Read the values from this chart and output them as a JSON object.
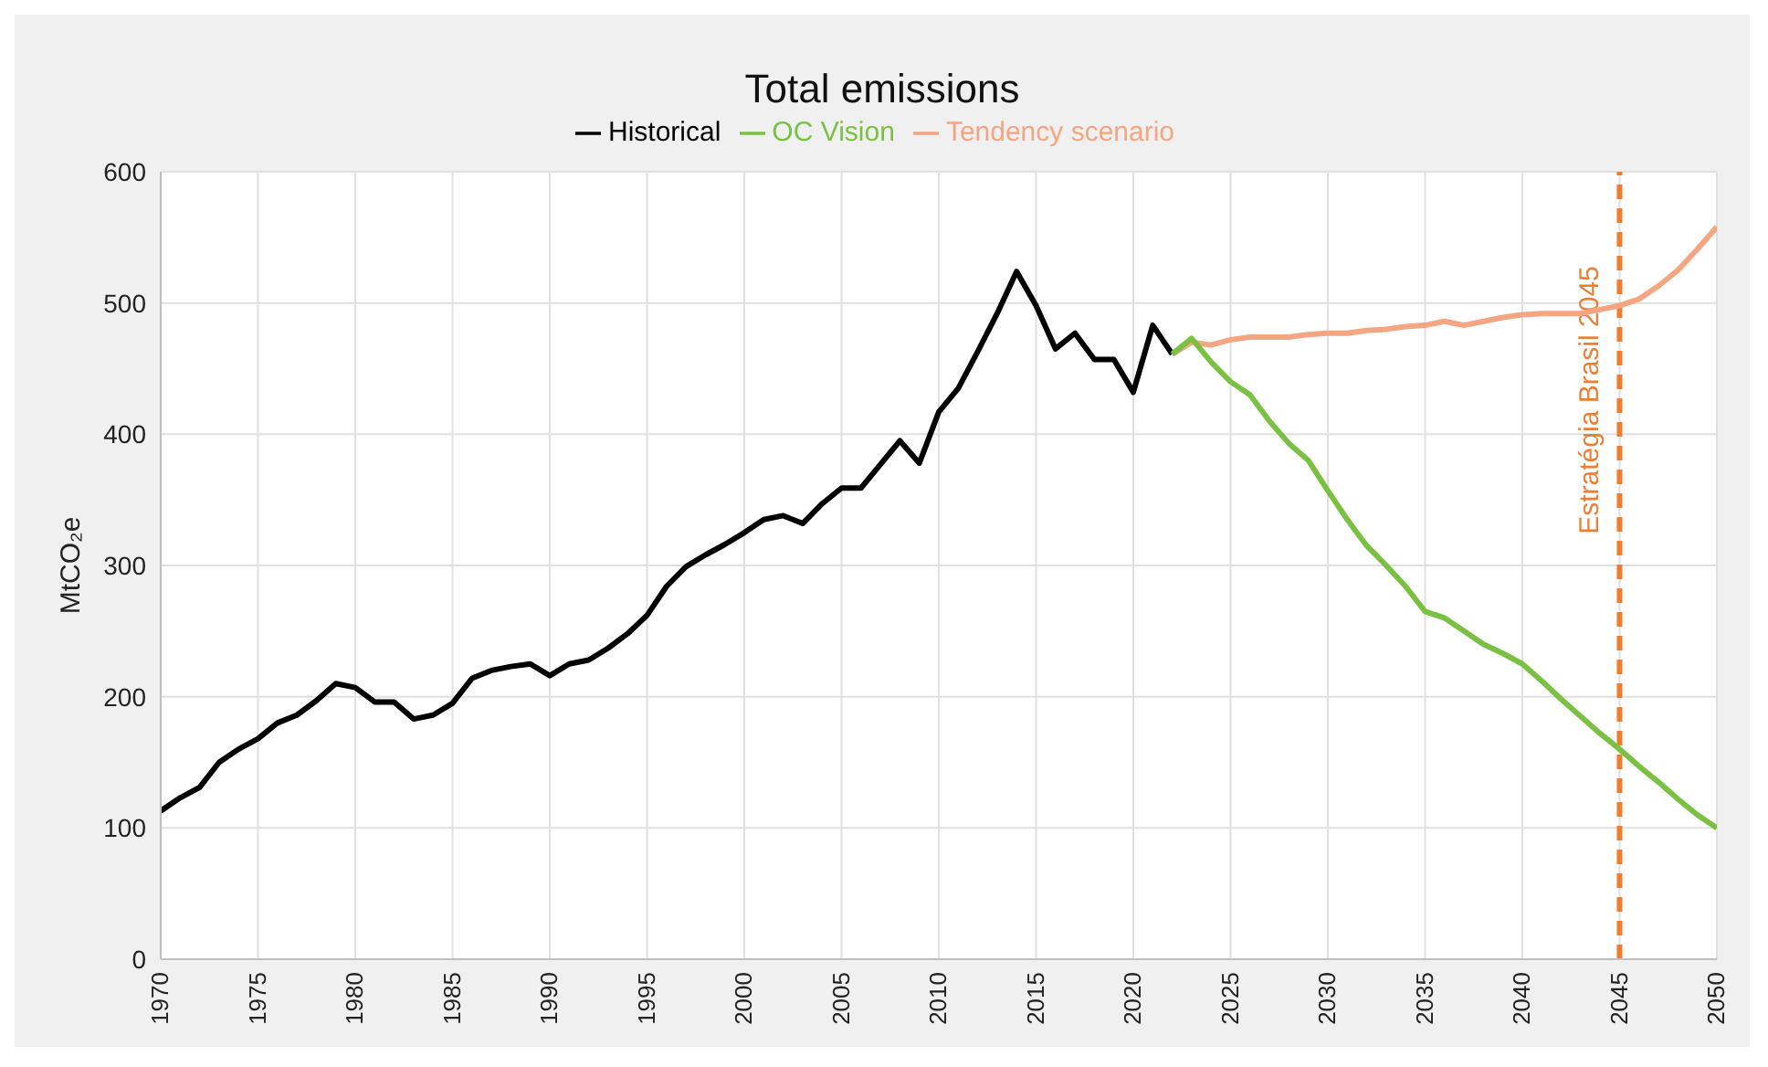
{
  "chart_data": {
    "type": "line",
    "title": "Total emissions",
    "ylabel": "MtCO₂e",
    "x": [
      1970,
      1971,
      1972,
      1973,
      1974,
      1975,
      1976,
      1977,
      1978,
      1979,
      1980,
      1981,
      1982,
      1983,
      1984,
      1985,
      1986,
      1987,
      1988,
      1989,
      1990,
      1991,
      1992,
      1993,
      1994,
      1995,
      1996,
      1997,
      1998,
      1999,
      2000,
      2001,
      2002,
      2003,
      2004,
      2005,
      2006,
      2007,
      2008,
      2009,
      2010,
      2011,
      2012,
      2013,
      2014,
      2015,
      2016,
      2017,
      2018,
      2019,
      2020,
      2021,
      2022,
      2023,
      2024,
      2025,
      2026,
      2027,
      2028,
      2029,
      2030,
      2031,
      2032,
      2033,
      2034,
      2035,
      2036,
      2037,
      2038,
      2039,
      2040,
      2041,
      2042,
      2043,
      2044,
      2045,
      2046,
      2047,
      2048,
      2049,
      2050
    ],
    "series": [
      {
        "name": "Historical",
        "color": "#000000",
        "values": [
          113,
          123,
          131,
          150,
          160,
          168,
          180,
          186,
          197,
          210,
          207,
          196,
          196,
          183,
          186,
          195,
          214,
          220,
          223,
          225,
          216,
          225,
          228,
          237,
          248,
          262,
          284,
          299,
          308,
          316,
          325,
          335,
          338,
          332,
          347,
          359,
          359,
          377,
          395,
          378,
          417,
          435,
          463,
          492,
          524,
          498,
          465,
          477,
          457,
          457,
          432,
          483,
          461,
          null,
          null,
          null,
          null,
          null,
          null,
          null,
          null,
          null,
          null,
          null,
          null,
          null,
          null,
          null,
          null,
          null,
          null,
          null,
          null,
          null,
          null,
          null,
          null,
          null,
          null,
          null,
          null
        ]
      },
      {
        "name": "Tendency scenario",
        "color": "#f4a582",
        "values": [
          null,
          null,
          null,
          null,
          null,
          null,
          null,
          null,
          null,
          null,
          null,
          null,
          null,
          null,
          null,
          null,
          null,
          null,
          null,
          null,
          null,
          null,
          null,
          null,
          null,
          null,
          null,
          null,
          null,
          null,
          null,
          null,
          null,
          null,
          null,
          null,
          null,
          null,
          null,
          null,
          null,
          null,
          null,
          null,
          null,
          null,
          null,
          null,
          null,
          null,
          null,
          null,
          461,
          470,
          468,
          472,
          474,
          474,
          474,
          476,
          477,
          477,
          479,
          480,
          482,
          483,
          486,
          483,
          486,
          489,
          491,
          492,
          492,
          492,
          495,
          498,
          503,
          513,
          525,
          541,
          558
        ]
      },
      {
        "name": "OC Vision",
        "color": "#7ac143",
        "values": [
          null,
          null,
          null,
          null,
          null,
          null,
          null,
          null,
          null,
          null,
          null,
          null,
          null,
          null,
          null,
          null,
          null,
          null,
          null,
          null,
          null,
          null,
          null,
          null,
          null,
          null,
          null,
          null,
          null,
          null,
          null,
          null,
          null,
          null,
          null,
          null,
          null,
          null,
          null,
          null,
          null,
          null,
          null,
          null,
          null,
          null,
          null,
          null,
          null,
          null,
          null,
          null,
          461,
          473,
          455,
          440,
          430,
          410,
          393,
          380,
          357,
          335,
          315,
          300,
          284,
          265,
          260,
          250,
          240,
          233,
          225,
          212,
          198,
          185,
          172,
          160,
          147,
          135,
          122,
          110,
          100
        ]
      }
    ],
    "xlim": [
      1970,
      2050
    ],
    "xticks": [
      1970,
      1975,
      1980,
      1985,
      1990,
      1995,
      2000,
      2005,
      2010,
      2015,
      2020,
      2025,
      2030,
      2035,
      2040,
      2045,
      2050
    ],
    "ylim": [
      0,
      600
    ],
    "yticks": [
      0,
      100,
      200,
      300,
      400,
      500,
      600
    ],
    "ref_lines": [
      {
        "axis": "x",
        "value": 2045,
        "label": "Estratégia Brasil 2045",
        "color": "#ed7d31",
        "line_style": "dashed"
      }
    ],
    "grid": true,
    "legend": "top",
    "marker": "none",
    "line_style": "solid"
  }
}
